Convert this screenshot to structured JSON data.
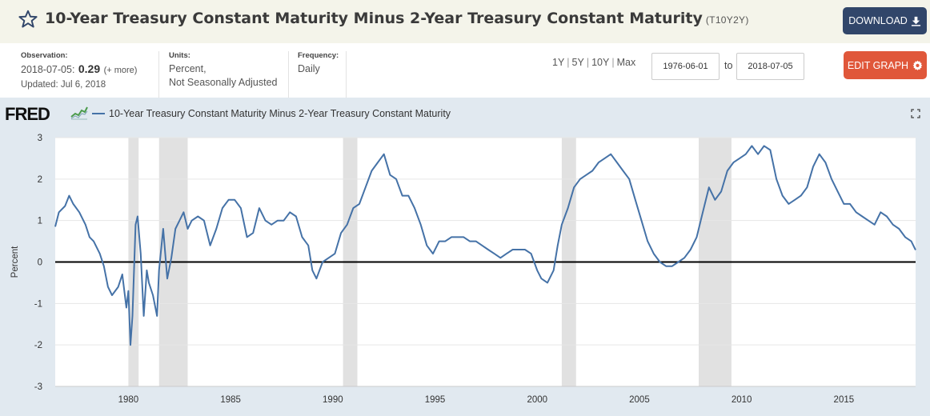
{
  "header": {
    "title": "10-Year Treasury Constant Maturity Minus 2-Year Treasury Constant Maturity",
    "series_id": "(T10Y2Y)",
    "download_label": "DOWNLOAD",
    "download_icon": "download-icon"
  },
  "observation": {
    "label": "Observation:",
    "date": "2018-07-05:",
    "value": "0.29",
    "more": "(+ more)",
    "updated": "Updated: Jul 6, 2018"
  },
  "units": {
    "label": "Units:",
    "line1": "Percent,",
    "line2": "Not Seasonally Adjusted"
  },
  "frequency": {
    "label": "Frequency:",
    "value": "Daily"
  },
  "range": {
    "links": [
      "1Y",
      "5Y",
      "10Y",
      "Max"
    ],
    "start": "1976-06-01",
    "to_label": "to",
    "end": "2018-07-05"
  },
  "edit_graph_label": "EDIT GRAPH",
  "brand": {
    "logo_text": "FRED",
    "line_color": "#4572a7",
    "recession_color": "#e1e1e1"
  },
  "chart_data": {
    "type": "line",
    "ylabel": "Percent",
    "legend": "10-Year Treasury Constant Maturity Minus 2-Year Treasury Constant Maturity",
    "ylim": [
      -3,
      3
    ],
    "y_ticks": [
      "3",
      "2",
      "1",
      "0",
      "-1",
      "-2",
      "-3"
    ],
    "x_ticks": [
      "1980",
      "1985",
      "1990",
      "1995",
      "2000",
      "2005",
      "2010",
      "2015"
    ],
    "xlim": [
      1976.42,
      2018.51
    ],
    "recessions": [
      [
        1980.0,
        1980.5
      ],
      [
        1981.5,
        1982.9
      ],
      [
        1990.5,
        1991.2
      ],
      [
        2001.2,
        2001.9
      ],
      [
        2007.9,
        2009.5
      ]
    ],
    "series": [
      {
        "name": "10-Year Treasury Constant Maturity Minus 2-Year Treasury Constant Maturity",
        "x": [
          1976.42,
          1976.6,
          1976.9,
          1977.1,
          1977.3,
          1977.6,
          1977.9,
          1978.1,
          1978.3,
          1978.6,
          1978.8,
          1979.0,
          1979.2,
          1979.5,
          1979.7,
          1979.9,
          1980.0,
          1980.1,
          1980.2,
          1980.35,
          1980.45,
          1980.6,
          1980.75,
          1980.9,
          1981.0,
          1981.2,
          1981.4,
          1981.5,
          1981.7,
          1981.9,
          1982.1,
          1982.3,
          1982.5,
          1982.7,
          1982.9,
          1983.1,
          1983.4,
          1983.7,
          1984.0,
          1984.3,
          1984.6,
          1984.9,
          1985.2,
          1985.5,
          1985.8,
          1986.1,
          1986.4,
          1986.7,
          1987.0,
          1987.3,
          1987.6,
          1987.9,
          1988.2,
          1988.5,
          1988.8,
          1989.0,
          1989.2,
          1989.5,
          1989.8,
          1990.1,
          1990.4,
          1990.7,
          1991.0,
          1991.3,
          1991.6,
          1991.9,
          1992.2,
          1992.5,
          1992.8,
          1993.1,
          1993.4,
          1993.7,
          1994.0,
          1994.3,
          1994.6,
          1994.9,
          1995.2,
          1995.5,
          1995.8,
          1996.1,
          1996.4,
          1996.7,
          1997.0,
          1997.3,
          1997.6,
          1997.9,
          1998.2,
          1998.5,
          1998.8,
          1999.1,
          1999.4,
          1999.7,
          2000.0,
          2000.2,
          2000.5,
          2000.8,
          2001.0,
          2001.2,
          2001.5,
          2001.8,
          2002.1,
          2002.4,
          2002.7,
          2003.0,
          2003.3,
          2003.6,
          2003.9,
          2004.2,
          2004.5,
          2004.8,
          2005.1,
          2005.4,
          2005.7,
          2006.0,
          2006.3,
          2006.6,
          2006.9,
          2007.2,
          2007.5,
          2007.8,
          2008.1,
          2008.4,
          2008.7,
          2009.0,
          2009.3,
          2009.6,
          2009.9,
          2010.2,
          2010.5,
          2010.8,
          2011.1,
          2011.4,
          2011.7,
          2012.0,
          2012.3,
          2012.6,
          2012.9,
          2013.2,
          2013.5,
          2013.8,
          2014.1,
          2014.4,
          2014.7,
          2015.0,
          2015.3,
          2015.6,
          2015.9,
          2016.2,
          2016.5,
          2016.8,
          2017.1,
          2017.4,
          2017.7,
          2018.0,
          2018.3,
          2018.51
        ],
        "y": [
          0.85,
          1.2,
          1.35,
          1.6,
          1.4,
          1.2,
          0.9,
          0.6,
          0.5,
          0.2,
          -0.1,
          -0.6,
          -0.8,
          -0.6,
          -0.3,
          -1.1,
          -0.7,
          -2.0,
          -1.3,
          0.9,
          1.1,
          0.2,
          -1.3,
          -0.2,
          -0.5,
          -0.8,
          -1.3,
          -0.2,
          0.8,
          -0.4,
          0.1,
          0.8,
          1.0,
          1.2,
          0.8,
          1.0,
          1.1,
          1.0,
          0.4,
          0.8,
          1.3,
          1.5,
          1.5,
          1.3,
          0.6,
          0.7,
          1.3,
          1.0,
          0.9,
          1.0,
          1.0,
          1.2,
          1.1,
          0.6,
          0.4,
          -0.2,
          -0.4,
          0.0,
          0.1,
          0.2,
          0.7,
          0.9,
          1.3,
          1.4,
          1.8,
          2.2,
          2.4,
          2.6,
          2.1,
          2.0,
          1.6,
          1.6,
          1.3,
          0.9,
          0.4,
          0.2,
          0.5,
          0.5,
          0.6,
          0.6,
          0.6,
          0.5,
          0.5,
          0.4,
          0.3,
          0.2,
          0.1,
          0.2,
          0.3,
          0.3,
          0.3,
          0.2,
          -0.2,
          -0.4,
          -0.5,
          -0.2,
          0.4,
          0.9,
          1.3,
          1.8,
          2.0,
          2.1,
          2.2,
          2.4,
          2.5,
          2.6,
          2.4,
          2.2,
          2.0,
          1.5,
          1.0,
          0.5,
          0.2,
          0.0,
          -0.1,
          -0.1,
          0.0,
          0.1,
          0.3,
          0.6,
          1.2,
          1.8,
          1.5,
          1.7,
          2.2,
          2.4,
          2.5,
          2.6,
          2.8,
          2.6,
          2.8,
          2.7,
          2.0,
          1.6,
          1.4,
          1.5,
          1.6,
          1.8,
          2.3,
          2.6,
          2.4,
          2.0,
          1.7,
          1.4,
          1.4,
          1.2,
          1.1,
          1.0,
          0.9,
          1.2,
          1.1,
          0.9,
          0.8,
          0.6,
          0.5,
          0.29
        ]
      }
    ]
  }
}
